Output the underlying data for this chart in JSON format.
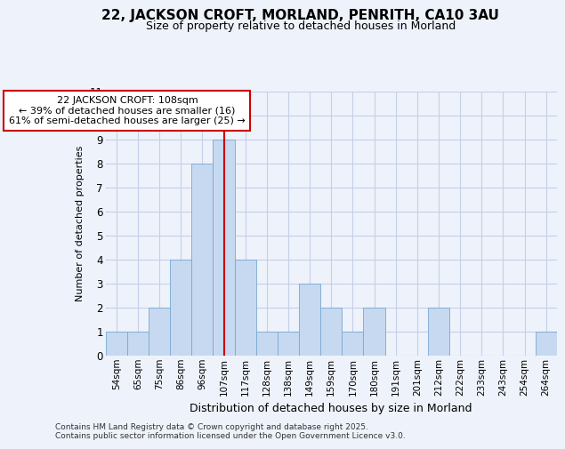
{
  "title1": "22, JACKSON CROFT, MORLAND, PENRITH, CA10 3AU",
  "title2": "Size of property relative to detached houses in Morland",
  "xlabel": "Distribution of detached houses by size in Morland",
  "ylabel": "Number of detached properties",
  "categories": [
    "54sqm",
    "65sqm",
    "75sqm",
    "86sqm",
    "96sqm",
    "107sqm",
    "117sqm",
    "128sqm",
    "138sqm",
    "149sqm",
    "159sqm",
    "170sqm",
    "180sqm",
    "191sqm",
    "201sqm",
    "212sqm",
    "222sqm",
    "233sqm",
    "243sqm",
    "254sqm",
    "264sqm"
  ],
  "values": [
    1,
    1,
    2,
    4,
    8,
    9,
    4,
    1,
    1,
    3,
    2,
    1,
    2,
    0,
    0,
    2,
    0,
    0,
    0,
    0,
    1
  ],
  "bar_color": "#c6d9f0",
  "bar_edge_color": "#7aa8d2",
  "highlight_index": 5,
  "highlight_line_color": "#cc0000",
  "annotation_text": "22 JACKSON CROFT: 108sqm\n← 39% of detached houses are smaller (16)\n61% of semi-detached houses are larger (25) →",
  "annotation_box_color": "#ffffff",
  "annotation_box_edge": "#cc0000",
  "ylim": [
    0,
    11
  ],
  "yticks": [
    0,
    1,
    2,
    3,
    4,
    5,
    6,
    7,
    8,
    9,
    10,
    11
  ],
  "footer": "Contains HM Land Registry data © Crown copyright and database right 2025.\nContains public sector information licensed under the Open Government Licence v3.0.",
  "bg_color": "#eef2fa",
  "grid_color": "#c5cfe8",
  "title1_fontsize": 11,
  "title2_fontsize": 9,
  "annot_fontsize": 8,
  "ylabel_fontsize": 8,
  "xlabel_fontsize": 9
}
